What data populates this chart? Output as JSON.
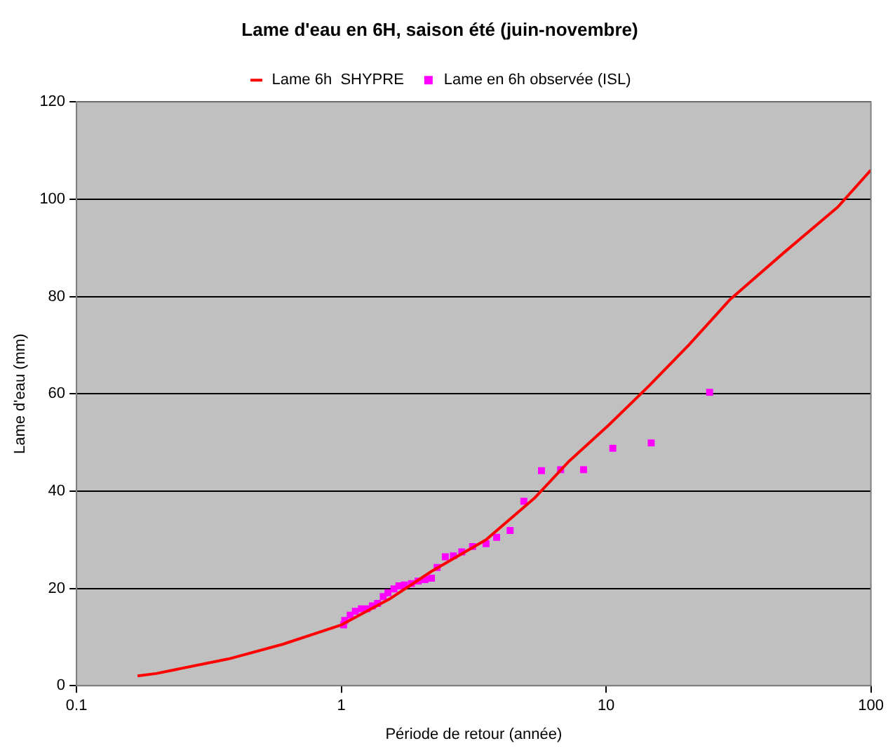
{
  "chart_data": {
    "type": "line",
    "title": "Lame d'eau en 6H, saison été (juin-novembre)",
    "xlabel": "Période de retour (année)",
    "ylabel": "Lame d'eau (mm)",
    "log": "x",
    "xlim": [
      0.1,
      100
    ],
    "xticks": [
      0.1,
      1,
      10,
      100
    ],
    "ylim": [
      0,
      120
    ],
    "yticks": [
      0,
      20,
      40,
      60,
      80,
      100,
      120
    ],
    "grid": "y",
    "legend": "top",
    "series": [
      {
        "name": "Lame 6h  SHYPRE",
        "color": "#ff0000",
        "marker": "none",
        "line_style": "solid",
        "x": [
          0.17,
          0.2,
          0.375,
          0.6,
          1,
          1.54,
          2.19,
          3.52,
          5.35,
          7.2,
          10.2,
          14.5,
          20.5,
          29.4,
          46.9,
          75,
          100
        ],
        "values": [
          2,
          2.5,
          5.5,
          8.5,
          12.5,
          18,
          23.5,
          30,
          38.5,
          46,
          53.5,
          61.6,
          70,
          79.4,
          89,
          98.4,
          106
        ]
      },
      {
        "name": "Lame en 6h observée (ISL)",
        "type": "scatter",
        "color": "#ff00ff",
        "marker": "square",
        "x": [
          1.02,
          1.03,
          1.08,
          1.13,
          1.19,
          1.25,
          1.31,
          1.37,
          1.44,
          1.5,
          1.58,
          1.65,
          1.73,
          1.84,
          1.95,
          2.07,
          2.19,
          2.3,
          2.47,
          2.65,
          2.85,
          3.13,
          3.52,
          3.86,
          4.34,
          4.89,
          5.7,
          6.73,
          8.22,
          10.6,
          14.8,
          24.6
        ],
        "values": [
          12.5,
          13.4,
          14.5,
          15.3,
          15.8,
          15.8,
          16.4,
          16.9,
          18.3,
          19.1,
          19.9,
          20.5,
          20.7,
          21,
          21.5,
          21.8,
          22.1,
          24.3,
          26.5,
          26.7,
          27.5,
          28.6,
          29.2,
          30.5,
          31.9,
          37.9,
          44.2,
          44.4,
          44.4,
          48.8,
          49.9,
          60.3
        ]
      }
    ]
  }
}
